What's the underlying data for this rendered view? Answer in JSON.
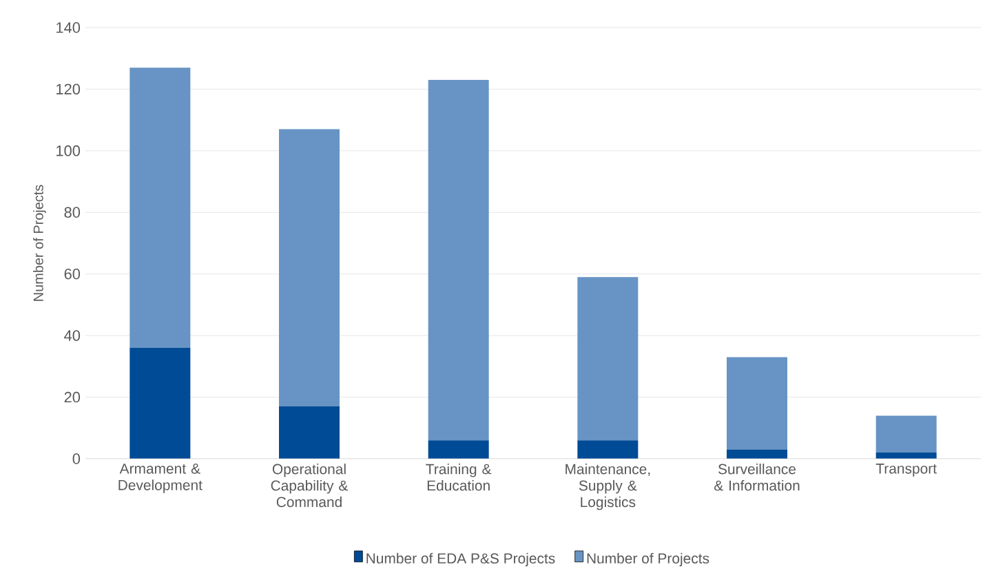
{
  "chart_data": {
    "type": "bar",
    "stacked": true,
    "ylabel": "Number of Projects",
    "categories": [
      "Armament & Development",
      "Operational Capability & Command",
      "Training & Education",
      "Maintenance, Supply & Logistics",
      "Surveillance & Information",
      "Transport"
    ],
    "series": [
      {
        "name": "Number of EDA P&S Projects",
        "color": "#004b96",
        "values": [
          36,
          17,
          6,
          6,
          3,
          2
        ]
      },
      {
        "name": "Number of Projects",
        "color": "#6794c4",
        "values": [
          91,
          90,
          117,
          53,
          30,
          12
        ]
      }
    ],
    "ylim": [
      0,
      140
    ],
    "yticks": [
      0,
      20,
      40,
      60,
      80,
      100,
      120,
      140
    ],
    "grid": "y",
    "legend": "bottom"
  }
}
